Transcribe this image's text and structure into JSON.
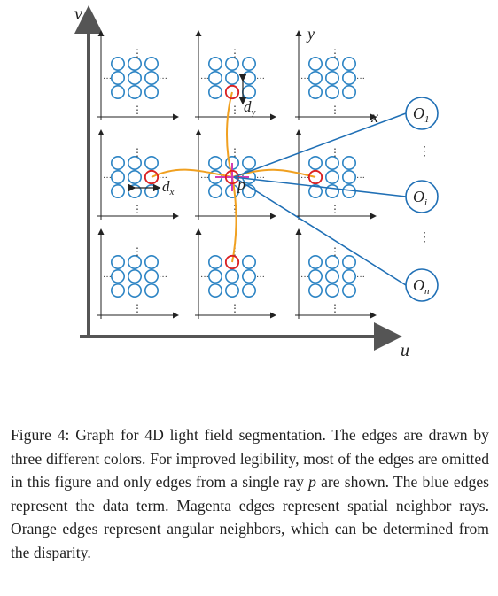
{
  "figure": {
    "outer_axes": {
      "vertical": "v",
      "horizontal": "u"
    },
    "inner_axes": {
      "vertical": "y",
      "horizontal": "x"
    },
    "labels": {
      "ray": "p",
      "disparity_x": "d",
      "disparity_x_sub": "x",
      "disparity_y": "d",
      "disparity_y_sub": "y"
    },
    "terminals": [
      {
        "letter": "O",
        "sub": "1"
      },
      {
        "letter": "O",
        "sub": "i"
      },
      {
        "letter": "O",
        "sub": "n"
      }
    ],
    "vertical_dots": "⋮",
    "horizontal_dots": "···",
    "colors": {
      "data_term": "#1f6fb5",
      "spatial": "#d33db3",
      "angular": "#f0a020",
      "node": "#2c84c4",
      "highlight": "#e02020",
      "axis": "#555555"
    }
  },
  "caption": {
    "label": "Figure 4:",
    "text_1": " Graph for 4D light field segmentation. The edges are drawn by three different colors. For improved legibility, most of the edges are omitted in this figure and only edges from a single ray ",
    "ray": "p",
    "text_2": " are shown. The blue edges represent the data term. Magenta edges represent spatial neighbor rays. Orange edges represent angular neighbors, which can be determined from the disparity."
  }
}
